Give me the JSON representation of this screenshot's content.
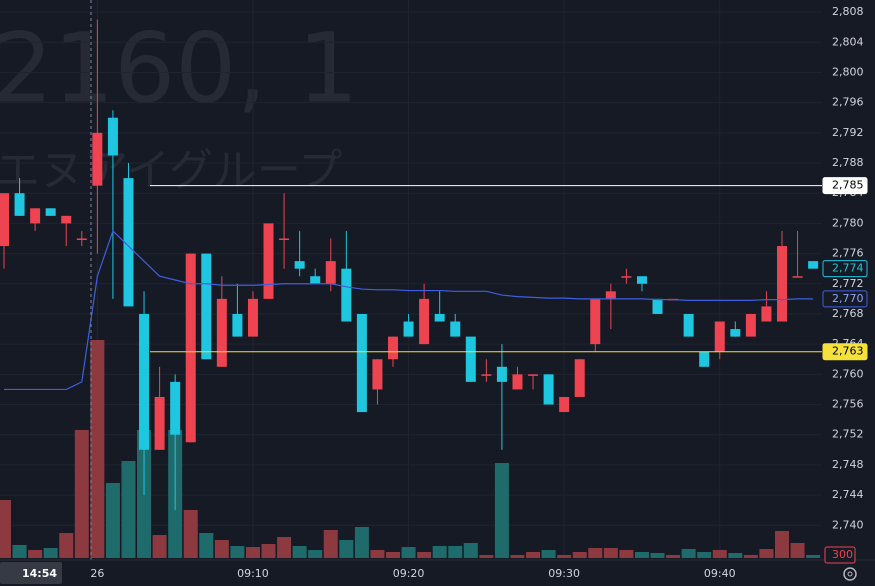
{
  "chart_data": {
    "type": "candlestick",
    "watermark": {
      "symbol": "2160, 1",
      "name": "エヌアイグループ"
    },
    "crosshair_label": "14:54",
    "categories": [
      null,
      null,
      null,
      null,
      null,
      null,
      "26",
      null,
      null,
      null,
      null,
      null,
      null,
      null,
      null,
      null,
      "09:10",
      null,
      null,
      null,
      null,
      null,
      null,
      null,
      null,
      null,
      "09:20",
      null,
      null,
      null,
      null,
      null,
      null,
      null,
      null,
      null,
      "09:30",
      null,
      null,
      null,
      null,
      null,
      null,
      null,
      null,
      null,
      "09:40",
      null,
      null,
      null,
      null,
      null,
      null
    ],
    "open": [
      2777,
      2784,
      2780,
      2782,
      2780,
      2778,
      2785,
      2794,
      2786,
      2768,
      2750,
      2759,
      2751,
      2776,
      2761,
      2768,
      2765,
      2770,
      2778,
      2775,
      2773,
      2772,
      2774,
      2768,
      2758,
      2762,
      2767,
      2764,
      2768,
      2767,
      2765,
      2760,
      2761,
      2758,
      2760,
      2760,
      2755,
      2757,
      2764,
      2770,
      2773,
      2773,
      2770,
      2770,
      2768,
      2763,
      2763,
      2766,
      2765,
      2767,
      2767,
      2773,
      2775
    ],
    "high": [
      2784,
      2786,
      2782,
      2782,
      2781,
      2779,
      2807,
      2795,
      2788,
      2771,
      2761,
      2760,
      2776,
      2776,
      2773,
      2772,
      2771,
      2780,
      2784,
      2779,
      2774,
      2778,
      2779,
      2768,
      2762,
      2765,
      2768,
      2772,
      2771,
      2768,
      2765,
      2762,
      2764,
      2761,
      2760,
      2760,
      2757,
      2762,
      2770,
      2772,
      2774,
      2773,
      2770,
      2770,
      2768,
      2763,
      2767,
      2767,
      2768,
      2771,
      2779,
      2779,
      2775
    ],
    "low": [
      2774,
      2781,
      2779,
      2781,
      2777,
      2777,
      2776,
      2770,
      2769,
      2744,
      2750,
      2742,
      2751,
      2762,
      2761,
      2765,
      2765,
      2770,
      2774,
      2773,
      2772,
      2771,
      2767,
      2755,
      2756,
      2761,
      2765,
      2764,
      2767,
      2765,
      2759,
      2759,
      2750,
      2758,
      2758,
      2756,
      2755,
      2757,
      2763,
      2766,
      2772,
      2771,
      2768,
      2770,
      2765,
      2761,
      2762,
      2765,
      2765,
      2767,
      2767,
      2773,
      2774
    ],
    "close": [
      2784,
      2781,
      2782,
      2781,
      2781,
      2778,
      2792,
      2789,
      2769,
      2750,
      2757,
      2752,
      2776,
      2762,
      2770,
      2765,
      2770,
      2780,
      2778,
      2774,
      2772,
      2775,
      2767,
      2755,
      2762,
      2765,
      2765,
      2770,
      2767,
      2765,
      2759,
      2760,
      2759,
      2760,
      2760,
      2756,
      2757,
      2762,
      2770,
      2771,
      2773,
      2772,
      2768,
      2770,
      2765,
      2761,
      2767,
      2765,
      2768,
      2769,
      2777,
      2773,
      2774
    ],
    "volume": [
      5800,
      1300,
      800,
      1000,
      2500,
      12800,
      21800,
      7500,
      9700,
      12800,
      2300,
      12800,
      4800,
      2500,
      1800,
      1200,
      1100,
      1400,
      2100,
      1200,
      800,
      2800,
      1800,
      3100,
      800,
      600,
      1100,
      600,
      1200,
      1200,
      1500,
      300,
      9500,
      300,
      600,
      800,
      300,
      600,
      1000,
      1000,
      800,
      600,
      500,
      300,
      900,
      600,
      800,
      500,
      300,
      900,
      2700,
      1500,
      300
    ],
    "average": [
      2758,
      2758,
      2758,
      2758,
      2758,
      2759,
      2773,
      2779,
      2777,
      2775,
      2773,
      2772.5,
      2772,
      2772,
      2771.8,
      2771.8,
      2771.8,
      2771.9,
      2772,
      2772,
      2772,
      2772,
      2771.6,
      2771.3,
      2771.2,
      2771.2,
      2771.1,
      2771.1,
      2771.1,
      2771,
      2771,
      2771,
      2770.5,
      2770.3,
      2770.2,
      2770.1,
      2770.1,
      2770,
      2770,
      2770,
      2770,
      2770,
      2769.9,
      2769.9,
      2769.8,
      2769.8,
      2769.8,
      2769.8,
      2769.8,
      2769.9,
      2769.9,
      2770,
      2770
    ],
    "up_color": "#ee4451",
    "down_color": "#1fc6df",
    "up_volume_color": "#8c3a40",
    "down_volume_color": "#1f6b6c",
    "average_color": "#3f5fe0",
    "ylim": [
      2735.4,
      2809.6
    ],
    "yticks": [
      {
        "value": 2740,
        "label": "2,740"
      },
      {
        "value": 2744,
        "label": "2,744"
      },
      {
        "value": 2748,
        "label": "2,748"
      },
      {
        "value": 2752,
        "label": "2,752"
      },
      {
        "value": 2756,
        "label": "2,756"
      },
      {
        "value": 2760,
        "label": "2,760"
      },
      {
        "value": 2764,
        "label": "2,764"
      },
      {
        "value": 2768,
        "label": "2,768"
      },
      {
        "value": 2772,
        "label": "2,772"
      },
      {
        "value": 2776,
        "label": "2,776"
      },
      {
        "value": 2780,
        "label": "2,780"
      },
      {
        "value": 2784,
        "label": "2,784"
      },
      {
        "value": 2788,
        "label": "2,788"
      },
      {
        "value": 2792,
        "label": "2,792"
      },
      {
        "value": 2796,
        "label": "2,796"
      },
      {
        "value": 2800,
        "label": "2,800"
      },
      {
        "value": 2804,
        "label": "2,804"
      },
      {
        "value": 2808,
        "label": "2,808"
      }
    ],
    "vlim": [
      0,
      30000
    ],
    "volume_marker": 300,
    "price_lines": [
      {
        "value": 2785,
        "label": "2,785",
        "color": "#ffffff",
        "text_color": "#000000",
        "line": true
      },
      {
        "value": 2774,
        "label": "2,774",
        "color": "#1fc6df",
        "text_color": "#1fc6df",
        "line": false
      },
      {
        "value": 2770,
        "label": "2,770",
        "color": "#3f5fe0",
        "text_color": "#8fa3ff",
        "line": false
      },
      {
        "value": 2763,
        "label": "2,763",
        "color": "#f5e13c",
        "text_color": "#000000",
        "line": true
      }
    ],
    "grid": true
  }
}
